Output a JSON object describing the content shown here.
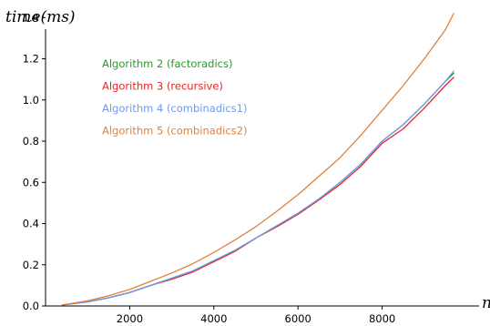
{
  "chart_data": {
    "type": "line",
    "ylabel": "time(ms)",
    "xlabel": "n",
    "xlim": [
      0,
      10000
    ],
    "ylim": [
      0,
      1.45
    ],
    "xticks": [
      2000,
      4000,
      6000,
      8000
    ],
    "xtick_labels": [
      "2000",
      "4000",
      "6000",
      "8000"
    ],
    "yticks": [
      0.0,
      0.2,
      0.4,
      0.6,
      0.8,
      1.0,
      1.2,
      1.4
    ],
    "ytick_labels": [
      "0.0",
      "0.2",
      "0.4",
      "0.6",
      "0.8",
      "1.0",
      "1.2",
      "1.4"
    ],
    "grid": false,
    "legend_position": "top-left",
    "series": [
      {
        "name": "Algorithm 2 (factoradics)",
        "color": "#2a9a2a",
        "x": [
          400,
          1000,
          1500,
          2000,
          2500,
          3000,
          3500,
          4000,
          4500,
          5000,
          5500,
          6000,
          6500,
          7000,
          7500,
          8000,
          8500,
          9000,
          9500,
          9700
        ],
        "y": [
          0.005,
          0.02,
          0.04,
          0.065,
          0.1,
          0.135,
          0.17,
          0.22,
          0.27,
          0.33,
          0.39,
          0.45,
          0.52,
          0.6,
          0.69,
          0.8,
          0.88,
          0.98,
          1.09,
          1.13
        ]
      },
      {
        "name": "Algorithm 3 (recursive)",
        "color": "#ee2222",
        "x": [
          400,
          1000,
          1500,
          2000,
          2500,
          3000,
          3500,
          4000,
          4500,
          5000,
          5500,
          6000,
          6500,
          7000,
          7500,
          8000,
          8500,
          9000,
          9500,
          9700
        ],
        "y": [
          0.005,
          0.02,
          0.04,
          0.065,
          0.1,
          0.13,
          0.165,
          0.215,
          0.265,
          0.33,
          0.385,
          0.445,
          0.515,
          0.59,
          0.68,
          0.79,
          0.86,
          0.96,
          1.07,
          1.11
        ]
      },
      {
        "name": "Algorithm 4 (combinadics1)",
        "color": "#6c9bf0",
        "x": [
          400,
          1000,
          1500,
          2000,
          2500,
          3000,
          3500,
          4000,
          4500,
          5000,
          5500,
          6000,
          6500,
          7000,
          7500,
          8000,
          8500,
          9000,
          9500,
          9700
        ],
        "y": [
          0.005,
          0.02,
          0.04,
          0.065,
          0.1,
          0.135,
          0.17,
          0.22,
          0.27,
          0.33,
          0.39,
          0.45,
          0.52,
          0.6,
          0.69,
          0.8,
          0.88,
          0.98,
          1.09,
          1.14
        ]
      },
      {
        "name": "Algorithm 5 (combinadics2)",
        "color": "#e0823a",
        "x": [
          400,
          1000,
          1500,
          2000,
          2500,
          3000,
          3500,
          4000,
          4500,
          5000,
          5500,
          6000,
          6500,
          7000,
          7500,
          8000,
          8500,
          9000,
          9500,
          9700
        ],
        "y": [
          0.005,
          0.025,
          0.05,
          0.08,
          0.12,
          0.16,
          0.205,
          0.26,
          0.32,
          0.385,
          0.46,
          0.54,
          0.63,
          0.72,
          0.83,
          0.95,
          1.07,
          1.2,
          1.34,
          1.42
        ]
      }
    ]
  }
}
